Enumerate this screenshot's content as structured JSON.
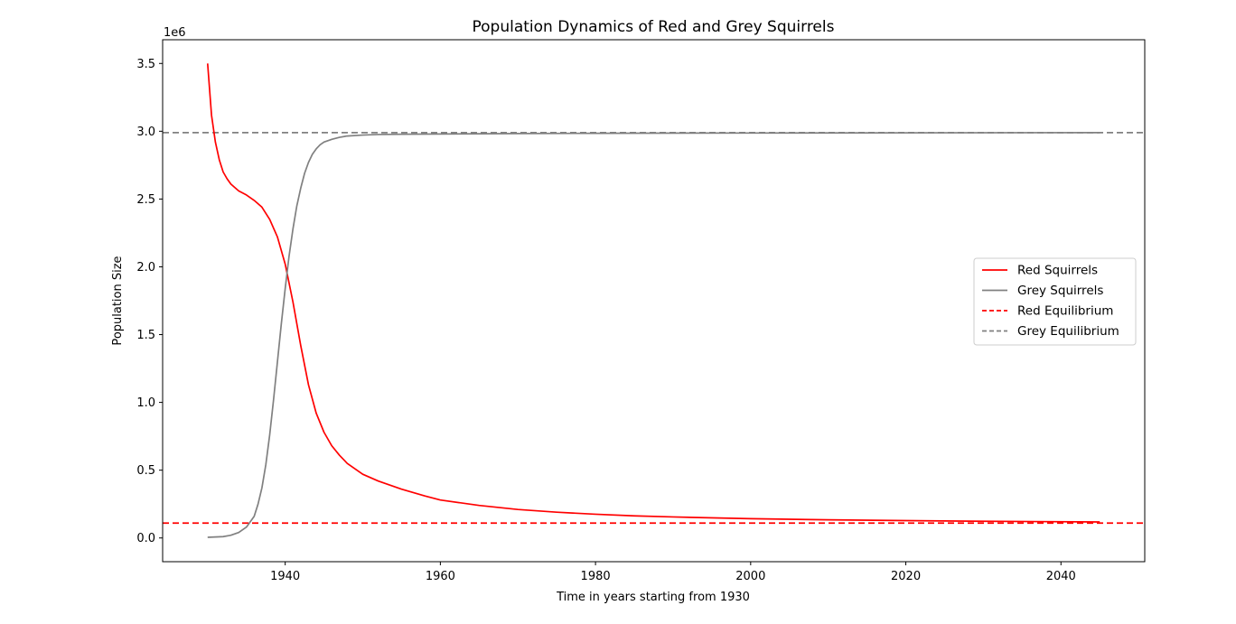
{
  "chart_data": {
    "type": "line",
    "title": "Population Dynamics of Red and Grey Squirrels",
    "xlabel": "Time in years starting from 1930",
    "ylabel": "Population Size",
    "y_offset_label": "1e6",
    "xlim": [
      1924.2,
      2050.8
    ],
    "ylim": [
      -0.175,
      3.675
    ],
    "y_units": "millions",
    "xticks": [
      1940,
      1960,
      1980,
      2000,
      2020,
      2040
    ],
    "xtick_labels": [
      "1940",
      "1960",
      "1980",
      "2000",
      "2020",
      "2040"
    ],
    "yticks": [
      0,
      0.5,
      1.0,
      1.5,
      2.0,
      2.5,
      3.0,
      3.5
    ],
    "ytick_labels": [
      "0.0",
      "0.5",
      "1.0",
      "1.5",
      "2.0",
      "2.5",
      "3.0",
      "3.5"
    ],
    "grid": false,
    "legend_position": "center-right",
    "series": [
      {
        "name": "Red Squirrels",
        "color": "#ff0000",
        "style": "solid",
        "x": [
          1930,
          1930.5,
          1931,
          1931.5,
          1932,
          1932.5,
          1933,
          1934,
          1935,
          1936,
          1937,
          1938,
          1939,
          1940,
          1941,
          1942,
          1943,
          1944,
          1945,
          1946,
          1947,
          1948,
          1949,
          1950,
          1952,
          1955,
          1958,
          1960,
          1965,
          1970,
          1975,
          1980,
          1985,
          1990,
          2000,
          2010,
          2020,
          2030,
          2045
        ],
        "y": [
          3.5,
          3.12,
          2.92,
          2.79,
          2.7,
          2.65,
          2.61,
          2.56,
          2.53,
          2.49,
          2.44,
          2.35,
          2.22,
          2.02,
          1.74,
          1.42,
          1.13,
          0.92,
          0.78,
          0.68,
          0.61,
          0.55,
          0.51,
          0.47,
          0.42,
          0.36,
          0.31,
          0.28,
          0.24,
          0.21,
          0.19,
          0.175,
          0.163,
          0.155,
          0.142,
          0.134,
          0.128,
          0.123,
          0.118
        ]
      },
      {
        "name": "Grey Squirrels",
        "color": "#808080",
        "style": "solid",
        "x": [
          1930,
          1932,
          1933,
          1934,
          1935,
          1936,
          1936.5,
          1937,
          1937.5,
          1938,
          1938.5,
          1939,
          1939.5,
          1940,
          1940.5,
          1941,
          1941.5,
          1942,
          1942.5,
          1943,
          1943.5,
          1944,
          1944.5,
          1945,
          1945.5,
          1946,
          1947,
          1948,
          1950,
          1952,
          1955,
          1960,
          1970,
          1980,
          2000,
          2045
        ],
        "y": [
          0.005,
          0.01,
          0.02,
          0.04,
          0.08,
          0.16,
          0.25,
          0.37,
          0.54,
          0.76,
          1.02,
          1.3,
          1.58,
          1.84,
          2.08,
          2.28,
          2.45,
          2.58,
          2.69,
          2.77,
          2.83,
          2.87,
          2.9,
          2.92,
          2.93,
          2.94,
          2.955,
          2.965,
          2.972,
          2.976,
          2.978,
          2.98,
          2.983,
          2.985,
          2.987,
          2.99
        ]
      },
      {
        "name": "Red Equilibrium",
        "color": "#ff0000",
        "style": "dashed",
        "hline": 0.11
      },
      {
        "name": "Grey Equilibrium",
        "color": "#808080",
        "style": "dashed",
        "hline": 2.99
      }
    ]
  }
}
